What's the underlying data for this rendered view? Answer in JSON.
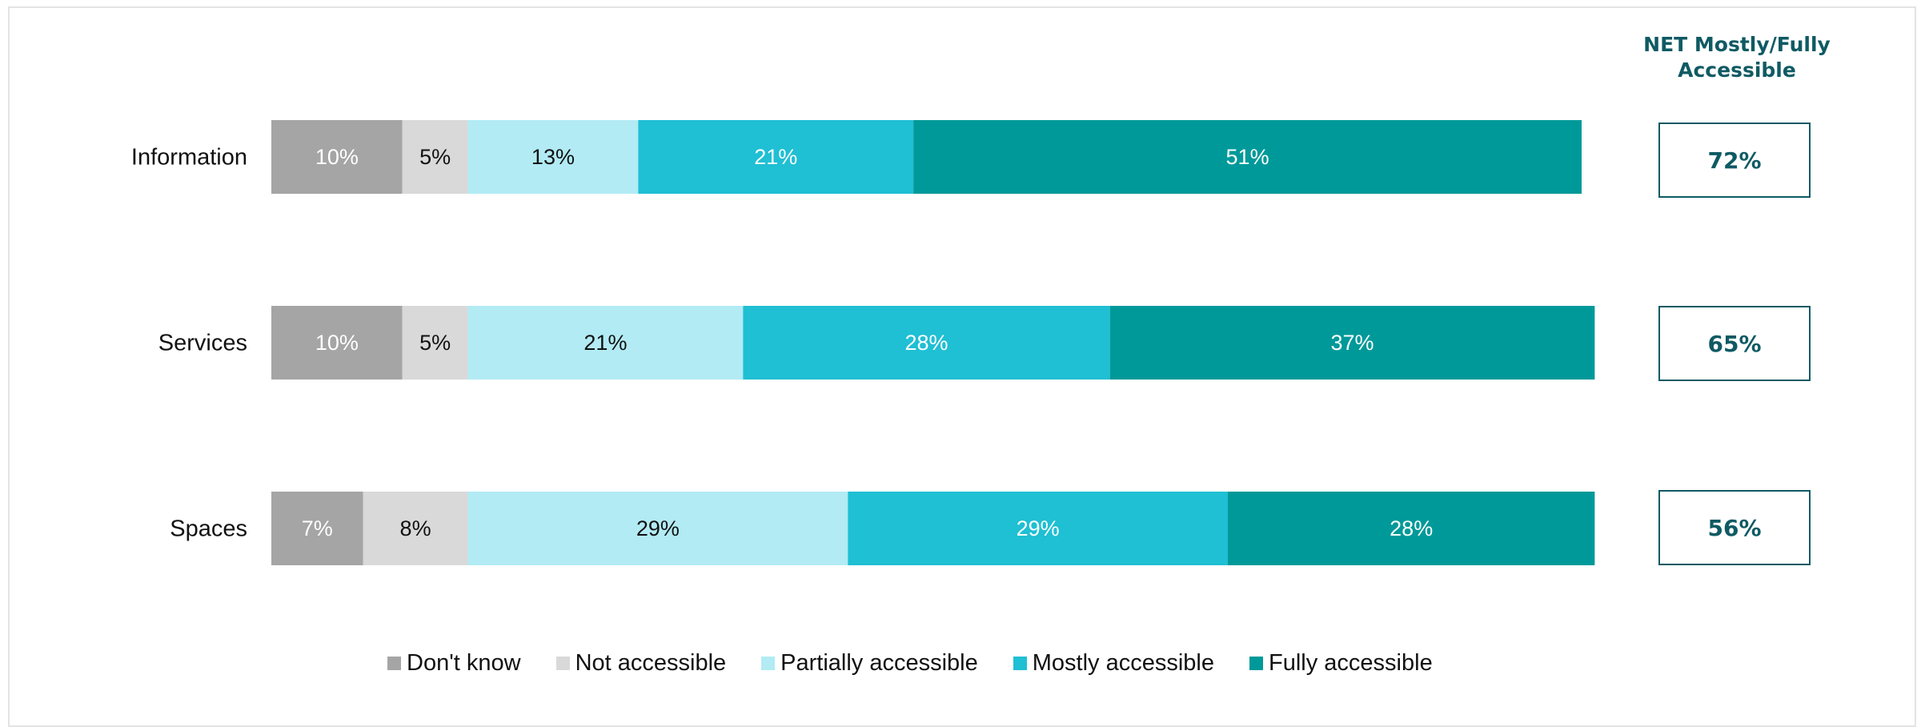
{
  "net_header": "NET Mostly/Fully Accessible",
  "chart_data": {
    "type": "bar",
    "orientation": "horizontal",
    "stacked": true,
    "title": "",
    "xlabel": "",
    "ylabel": "",
    "xlim": [
      0,
      100
    ],
    "grid": false,
    "legend": "bottom",
    "categories": [
      "Information",
      "Services",
      "Spaces"
    ],
    "series": [
      {
        "name": "Don't know",
        "color": "#a5a5a5",
        "label_color": "#ffffff",
        "values": [
          10,
          10,
          7
        ]
      },
      {
        "name": "Not accessible",
        "color": "#d9d9d9",
        "label_color": "#111111",
        "values": [
          5,
          5,
          8
        ]
      },
      {
        "name": "Partially accessible",
        "color": "#b2ebf4",
        "label_color": "#111111",
        "values": [
          13,
          21,
          29
        ]
      },
      {
        "name": "Mostly accessible",
        "color": "#1fbfd4",
        "label_color": "#ffffff",
        "values": [
          21,
          28,
          29
        ]
      },
      {
        "name": "Fully accessible",
        "color": "#009999",
        "label_color": "#ffffff",
        "values": [
          51,
          37,
          28
        ]
      }
    ],
    "net": [
      "72%",
      "65%",
      "56%"
    ]
  }
}
